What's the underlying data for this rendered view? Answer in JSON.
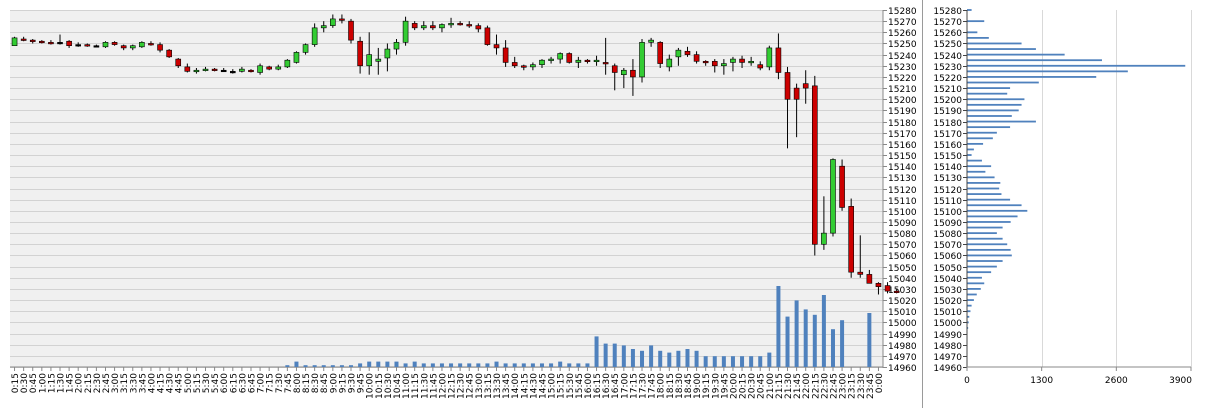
{
  "chart_data": [
    {
      "type": "candlestick",
      "ylim": [
        14960,
        15280
      ],
      "y_ticks": [
        14960,
        14970,
        14980,
        14990,
        15000,
        15010,
        15020,
        15030,
        15040,
        15050,
        15060,
        15070,
        15080,
        15090,
        15100,
        15110,
        15120,
        15130,
        15140,
        15150,
        15160,
        15170,
        15180,
        15190,
        15200,
        15210,
        15220,
        15230,
        15240,
        15250,
        15260,
        15270,
        15280
      ],
      "x_labels": [
        "0:15",
        "0:30",
        "0:45",
        "1:00",
        "1:15",
        "1:30",
        "1:45",
        "2:00",
        "2:15",
        "2:30",
        "2:45",
        "3:00",
        "3:15",
        "3:30",
        "3:45",
        "4:00",
        "4:15",
        "4:30",
        "4:45",
        "5:00",
        "5:15",
        "5:30",
        "5:45",
        "6:00",
        "6:15",
        "6:30",
        "6:45",
        "7:00",
        "7:15",
        "7:30",
        "7:45",
        "8:00",
        "8:15",
        "8:30",
        "8:45",
        "9:00",
        "9:15",
        "9:30",
        "9:45",
        "10:00",
        "10:15",
        "10:30",
        "10:45",
        "11:00",
        "11:15",
        "11:30",
        "11:45",
        "12:00",
        "12:15",
        "12:30",
        "12:45",
        "13:00",
        "13:15",
        "13:30",
        "13:45",
        "14:00",
        "14:15",
        "14:30",
        "14:45",
        "15:00",
        "15:15",
        "15:30",
        "15:45",
        "16:00",
        "16:15",
        "16:30",
        "16:45",
        "17:00",
        "17:15",
        "17:30",
        "17:45",
        "18:00",
        "18:15",
        "18:30",
        "18:45",
        "19:00",
        "19:15",
        "19:30",
        "19:45",
        "20:00",
        "20:15",
        "20:30",
        "20:45",
        "21:00",
        "21:15",
        "21:30",
        "21:45",
        "22:00",
        "22:15",
        "22:30",
        "22:45",
        "23:00",
        "23:15",
        "23:30",
        "23:45",
        "0:00"
      ],
      "ohlc": [
        [
          15248,
          15256,
          15248,
          15255
        ],
        [
          15254,
          15256,
          15252,
          15253
        ],
        [
          15253,
          15254,
          15250,
          15252
        ],
        [
          15252,
          15253,
          15250,
          15251
        ],
        [
          15251,
          15253,
          15249,
          15250
        ],
        [
          15251,
          15258,
          15249,
          15251
        ],
        [
          15252,
          15253,
          15246,
          15248
        ],
        [
          15249,
          15251,
          15247,
          15249
        ],
        [
          15249,
          15250,
          15247,
          15248
        ],
        [
          15248,
          15249,
          15247,
          15248
        ],
        [
          15247,
          15252,
          15246,
          15251
        ],
        [
          15251,
          15252,
          15248,
          15249
        ],
        [
          15248,
          15249,
          15244,
          15246
        ],
        [
          15246,
          15249,
          15244,
          15248
        ],
        [
          15247,
          15252,
          15246,
          15251
        ],
        [
          15250,
          15252,
          15248,
          15249
        ],
        [
          15249,
          15251,
          15242,
          15244
        ],
        [
          15244,
          15245,
          15237,
          15238
        ],
        [
          15236,
          15237,
          15228,
          15230
        ],
        [
          15229,
          15232,
          15224,
          15225
        ],
        [
          15225,
          15228,
          15223,
          15226
        ],
        [
          15226,
          15229,
          15225,
          15227
        ],
        [
          15227,
          15228,
          15225,
          15226
        ],
        [
          15226,
          15228,
          15225,
          15226
        ],
        [
          15225,
          15227,
          15223,
          15225
        ],
        [
          15225,
          15229,
          15224,
          15227
        ],
        [
          15226,
          15227,
          15224,
          15225
        ],
        [
          15224,
          15232,
          15222,
          15230
        ],
        [
          15229,
          15230,
          15226,
          15227
        ],
        [
          15227,
          15231,
          15226,
          15229
        ],
        [
          15229,
          15236,
          15228,
          15235
        ],
        [
          15233,
          15243,
          15232,
          15242
        ],
        [
          15242,
          15250,
          15240,
          15249
        ],
        [
          15249,
          15268,
          15247,
          15264
        ],
        [
          15264,
          15270,
          15260,
          15266
        ],
        [
          15266,
          15276,
          15264,
          15272
        ],
        [
          15272,
          15276,
          15268,
          15271
        ],
        [
          15270,
          15272,
          15250,
          15253
        ],
        [
          15252,
          15256,
          15223,
          15230
        ],
        [
          15230,
          15260,
          15222,
          15240
        ],
        [
          15234,
          15246,
          15222,
          15236
        ],
        [
          15237,
          15250,
          15225,
          15245
        ],
        [
          15245,
          15254,
          15240,
          15251
        ],
        [
          15251,
          15274,
          15248,
          15270
        ],
        [
          15268,
          15270,
          15262,
          15264
        ],
        [
          15264,
          15270,
          15262,
          15266
        ],
        [
          15266,
          15270,
          15262,
          15264
        ],
        [
          15264,
          15268,
          15260,
          15267
        ],
        [
          15267,
          15273,
          15264,
          15268
        ],
        [
          15268,
          15270,
          15266,
          15267
        ],
        [
          15267,
          15270,
          15264,
          15266
        ],
        [
          15266,
          15268,
          15260,
          15263
        ],
        [
          15264,
          15266,
          15248,
          15249
        ],
        [
          15249,
          15258,
          15240,
          15246
        ],
        [
          15246,
          15253,
          15229,
          15233
        ],
        [
          15233,
          15238,
          15228,
          15230
        ],
        [
          15230,
          15231,
          15226,
          15229
        ],
        [
          15229,
          15233,
          15226,
          15231
        ],
        [
          15231,
          15236,
          15228,
          15235
        ],
        [
          15235,
          15238,
          15232,
          15236
        ],
        [
          15236,
          15242,
          15232,
          15241
        ],
        [
          15241,
          15242,
          15232,
          15233
        ],
        [
          15233,
          15238,
          15228,
          15235
        ],
        [
          15235,
          15236,
          15232,
          15234
        ],
        [
          15234,
          15239,
          15230,
          15235
        ],
        [
          15233,
          15255,
          15222,
          15232
        ],
        [
          15230,
          15232,
          15208,
          15224
        ],
        [
          15222,
          15228,
          15210,
          15226
        ],
        [
          15226,
          15236,
          15203,
          15220
        ],
        [
          15220,
          15254,
          15215,
          15251
        ],
        [
          15251,
          15255,
          15247,
          15253
        ],
        [
          15251,
          15252,
          15228,
          15232
        ],
        [
          15229,
          15240,
          15225,
          15236
        ],
        [
          15238,
          15246,
          15230,
          15244
        ],
        [
          15243,
          15247,
          15238,
          15240
        ],
        [
          15240,
          15243,
          15232,
          15234
        ],
        [
          15234,
          15235,
          15230,
          15233
        ],
        [
          15234,
          15236,
          15224,
          15230
        ],
        [
          15230,
          15236,
          15222,
          15232
        ],
        [
          15233,
          15238,
          15225,
          15236
        ],
        [
          15236,
          15239,
          15228,
          15233
        ],
        [
          15233,
          15238,
          15230,
          15234
        ],
        [
          15231,
          15234,
          15226,
          15228
        ],
        [
          15229,
          15248,
          15226,
          15246
        ],
        [
          15246,
          15259,
          15218,
          15224
        ],
        [
          15224,
          15229,
          15156,
          15200
        ],
        [
          15210,
          15214,
          15166,
          15200
        ],
        [
          15214,
          15226,
          15196,
          15210
        ],
        [
          15212,
          15221,
          15060,
          15070
        ],
        [
          15070,
          15113,
          15065,
          15080
        ],
        [
          15080,
          15147,
          15077,
          15146
        ],
        [
          15140,
          15146,
          15100,
          15103
        ],
        [
          15104,
          15111,
          15040,
          15045
        ],
        [
          15045,
          15078,
          15040,
          15043
        ],
        [
          15043,
          15047,
          15036,
          15035
        ],
        [
          15035,
          15036,
          15025,
          15032
        ],
        [
          15033,
          15036,
          15026,
          15028
        ],
        [
          15028,
          15030,
          15026,
          15027
        ]
      ],
      "volume_max": 500,
      "volume": [
        0,
        0,
        0,
        0,
        0,
        0,
        0,
        0,
        0,
        0,
        0,
        0,
        0,
        0,
        0,
        0,
        0,
        0,
        0,
        0,
        0,
        0,
        0,
        0,
        0,
        0,
        0,
        0,
        0,
        0,
        10,
        30,
        10,
        10,
        10,
        10,
        10,
        10,
        20,
        30,
        30,
        30,
        30,
        20,
        30,
        20,
        20,
        20,
        20,
        20,
        20,
        20,
        20,
        30,
        20,
        20,
        20,
        20,
        20,
        20,
        30,
        20,
        20,
        20,
        170,
        130,
        130,
        120,
        100,
        90,
        120,
        90,
        80,
        90,
        100,
        90,
        60,
        60,
        60,
        60,
        60,
        60,
        60,
        80,
        450,
        280,
        370,
        320,
        290,
        400,
        210,
        260,
        0,
        0,
        300,
        0
      ]
    },
    {
      "type": "horizontal-bar",
      "xlim": [
        0,
        3900
      ],
      "x_ticks": [
        0,
        1300,
        2600,
        3900
      ],
      "ylim": [
        14960,
        15280
      ],
      "y_ticks": [
        14960,
        14970,
        14980,
        14990,
        15000,
        15010,
        15020,
        15030,
        15040,
        15050,
        15060,
        15070,
        15080,
        15090,
        15100,
        15110,
        15120,
        15130,
        15140,
        15150,
        15160,
        15170,
        15180,
        15190,
        15200,
        15210,
        15220,
        15230,
        15240,
        15250,
        15260,
        15270,
        15280
      ],
      "levels": [
        [
          15280,
          80
        ],
        [
          15270,
          300
        ],
        [
          15260,
          180
        ],
        [
          15255,
          380
        ],
        [
          15250,
          950
        ],
        [
          15245,
          1200
        ],
        [
          15240,
          1700
        ],
        [
          15235,
          2350
        ],
        [
          15230,
          3800
        ],
        [
          15225,
          2800
        ],
        [
          15220,
          2250
        ],
        [
          15215,
          1250
        ],
        [
          15210,
          750
        ],
        [
          15205,
          700
        ],
        [
          15200,
          1000
        ],
        [
          15195,
          950
        ],
        [
          15190,
          900
        ],
        [
          15185,
          780
        ],
        [
          15180,
          1200
        ],
        [
          15175,
          750
        ],
        [
          15170,
          520
        ],
        [
          15165,
          450
        ],
        [
          15160,
          280
        ],
        [
          15155,
          120
        ],
        [
          15150,
          80
        ],
        [
          15145,
          260
        ],
        [
          15140,
          420
        ],
        [
          15135,
          320
        ],
        [
          15130,
          480
        ],
        [
          15125,
          580
        ],
        [
          15120,
          560
        ],
        [
          15115,
          600
        ],
        [
          15110,
          750
        ],
        [
          15105,
          950
        ],
        [
          15100,
          1050
        ],
        [
          15095,
          880
        ],
        [
          15090,
          760
        ],
        [
          15085,
          620
        ],
        [
          15080,
          520
        ],
        [
          15075,
          620
        ],
        [
          15070,
          700
        ],
        [
          15065,
          760
        ],
        [
          15060,
          780
        ],
        [
          15055,
          620
        ],
        [
          15050,
          520
        ],
        [
          15045,
          420
        ],
        [
          15040,
          260
        ],
        [
          15035,
          300
        ],
        [
          15030,
          240
        ],
        [
          15025,
          170
        ],
        [
          15020,
          120
        ],
        [
          15015,
          80
        ],
        [
          15010,
          60
        ],
        [
          15005,
          40
        ],
        [
          15000,
          30
        ],
        [
          14995,
          20
        ]
      ]
    }
  ]
}
